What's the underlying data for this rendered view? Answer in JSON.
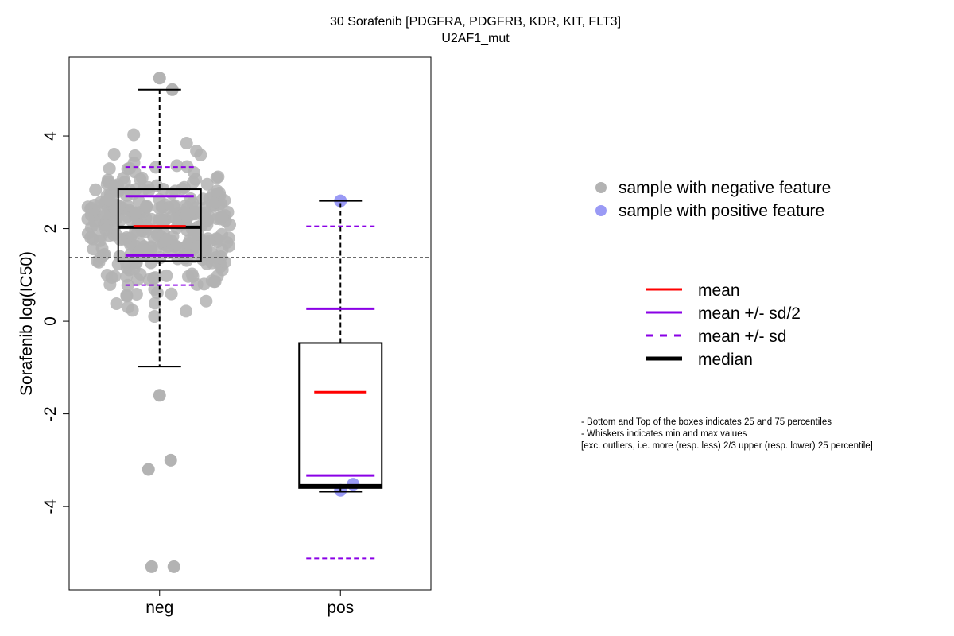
{
  "chart_data": {
    "type": "box",
    "title": "30 Sorafenib [PDGFRA, PDGFRB, KDR, KIT, FLT3]",
    "subtitle": "U2AF1_mut",
    "ylabel": "Sorafenib log(IC50)",
    "xlabel": "",
    "ylim": [
      -5.8,
      5.7
    ],
    "yticks": [
      -4,
      -2,
      0,
      2,
      4
    ],
    "categories": [
      "neg",
      "pos"
    ],
    "reference_line": 1.38,
    "groups": [
      {
        "name": "neg",
        "box_q1": 1.3,
        "box_q3": 2.85,
        "median": 2.03,
        "mean": 2.05,
        "mean_minus_half_sd": 1.42,
        "mean_plus_half_sd": 2.7,
        "mean_minus_sd": 0.78,
        "mean_plus_sd": 3.33,
        "whisker_low": -0.98,
        "whisker_high": 5.0,
        "point_color": "#b3b3b3",
        "outliers_low": [
          -1.6,
          -3.0,
          -3.2,
          -5.3,
          -5.3
        ],
        "outliers_high": [
          5.25,
          5.0
        ]
      },
      {
        "name": "pos",
        "box_q1": -3.6,
        "box_q3": -0.47,
        "median": -3.55,
        "mean": -1.53,
        "mean_minus_half_sd": -3.33,
        "mean_plus_half_sd": 0.27,
        "mean_minus_sd": -5.12,
        "mean_plus_sd": 2.05,
        "whisker_low": -3.68,
        "whisker_high": 2.6,
        "point_color": "#9a9af5",
        "points": [
          2.6,
          -3.52,
          -3.65
        ]
      }
    ],
    "legend_points": [
      {
        "label": "sample with negative feature",
        "color": "#b3b3b3"
      },
      {
        "label": "sample with positive feature",
        "color": "#9a9af5"
      }
    ],
    "legend_lines": [
      {
        "label": "mean",
        "color": "#ff0000",
        "style": "solid"
      },
      {
        "label": "mean +/- sd/2",
        "color": "#8a00e6",
        "style": "solid"
      },
      {
        "label": "mean +/- sd",
        "color": "#8a00e6",
        "style": "dashed"
      },
      {
        "label": "median",
        "color": "#000000",
        "style": "thick"
      }
    ],
    "notes": [
      "- Bottom and Top of the boxes indicates 25 and 75 percentiles",
      "- Whiskers indicates min and max values",
      "[exc. outliers, i.e. more (resp. less) 2/3 upper (resp. lower) 25 percentile]"
    ]
  }
}
